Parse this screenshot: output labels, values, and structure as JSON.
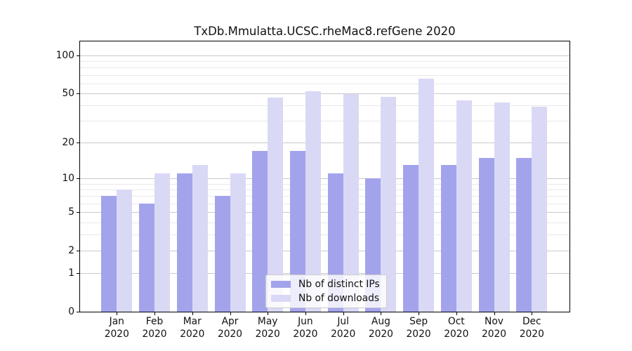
{
  "chart_data": {
    "type": "bar",
    "title": "TxDb.Mmulatta.UCSC.rheMac8.refGene 2020",
    "categories": [
      "Jan",
      "Feb",
      "Mar",
      "Apr",
      "May",
      "Jun",
      "Jul",
      "Aug",
      "Sep",
      "Oct",
      "Nov",
      "Dec"
    ],
    "category_year": "2020",
    "series": [
      {
        "name": "Nb of distinct IPs",
        "key": "distinct-ips",
        "color": "#a3a3ec",
        "values": [
          7,
          6,
          11,
          7,
          17,
          17,
          11,
          10,
          13,
          13,
          15,
          15
        ]
      },
      {
        "name": "Nb of downloads",
        "key": "downloads",
        "color": "#d9d9f6",
        "values": [
          8,
          11,
          13,
          11,
          46,
          52,
          49,
          47,
          65,
          44,
          42,
          39
        ]
      }
    ],
    "y_scale": "log1p",
    "y_major_ticks": [
      0,
      1,
      2,
      5,
      10,
      20,
      50,
      100
    ],
    "y_minor_ticks": [
      3,
      4,
      6,
      7,
      8,
      9,
      30,
      40,
      60,
      70,
      80,
      90
    ],
    "ylim": [
      0,
      128
    ],
    "grid": "horizontal-only",
    "legend_position": "lower-center",
    "colors": {
      "major_grid": "#c9c9c9",
      "minor_grid": "#e9e9e9",
      "axis": "#000000",
      "text": "#111111"
    }
  }
}
